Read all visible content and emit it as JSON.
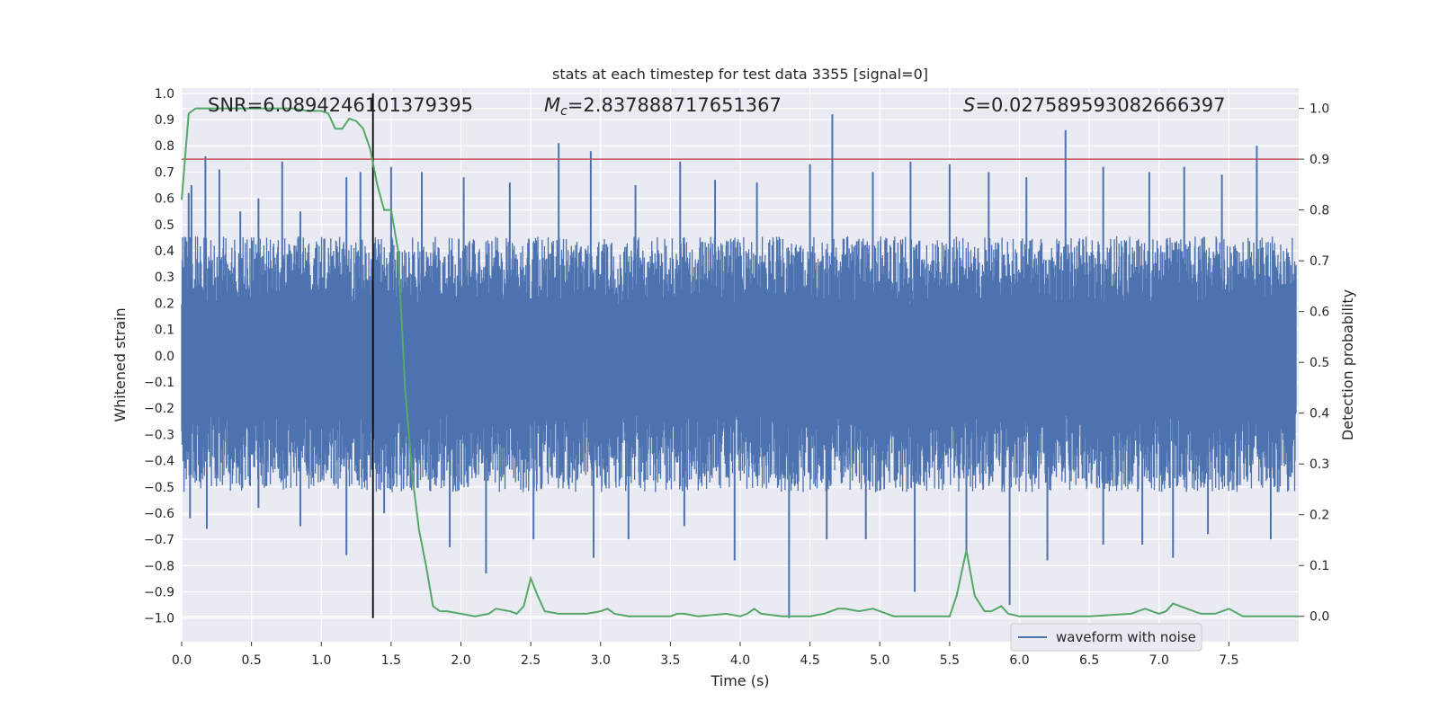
{
  "chart_data": {
    "type": "line",
    "title": "stats at each timestep for test data 3355 [signal=0]",
    "xlabel": "Time (s)",
    "ylabel_left": "Whitened strain",
    "ylabel_right": "Detection probability",
    "xlim": [
      0.0,
      8.0
    ],
    "ylim_left": [
      -1.09,
      1.02
    ],
    "ylim_right": [
      -0.05,
      1.04
    ],
    "x_ticks": [
      0.0,
      0.5,
      1.0,
      1.5,
      2.0,
      2.5,
      3.0,
      3.5,
      4.0,
      4.5,
      5.0,
      5.5,
      6.0,
      6.5,
      7.0,
      7.5
    ],
    "x_tick_labels": [
      "0.0",
      "0.5",
      "1.0",
      "1.5",
      "2.0",
      "2.5",
      "3.0",
      "3.5",
      "4.0",
      "4.5",
      "5.0",
      "5.5",
      "6.0",
      "6.5",
      "7.0",
      "7.5"
    ],
    "y_left_ticks": [
      1.0,
      0.9,
      0.8,
      0.7,
      0.6,
      0.5,
      0.4,
      0.3,
      0.2,
      0.1,
      0.0,
      -0.1,
      -0.2,
      -0.3,
      -0.4,
      -0.5,
      -0.6,
      -0.7,
      -0.8,
      -0.9,
      -1.0
    ],
    "y_left_tick_labels": [
      "1.0",
      "0.9",
      "0.8",
      "0.7",
      "0.6",
      "0.5",
      "0.4",
      "0.3",
      "0.2",
      "0.1",
      "0.0",
      "−0.1",
      "−0.2",
      "−0.3",
      "−0.4",
      "−0.5",
      "−0.6",
      "−0.7",
      "−0.8",
      "−0.9",
      "−1.0"
    ],
    "y_right_ticks": [
      1.0,
      0.9,
      0.8,
      0.7,
      0.6,
      0.5,
      0.4,
      0.3,
      0.2,
      0.1,
      0.0
    ],
    "y_right_tick_labels": [
      "1.0",
      "0.9",
      "0.8",
      "0.7",
      "0.6",
      "0.5",
      "0.4",
      "0.3",
      "0.2",
      "0.1",
      "0.0"
    ],
    "annotations": {
      "snr": "SNR=6.0894246101379395",
      "mc_symbol": "M",
      "mc_subscript": "c",
      "mc_value": "=2.837888717651367",
      "s_symbol": "S",
      "s_value": "=0.027589593082666397"
    },
    "legend": {
      "label": "waveform with noise",
      "placement": "lower-right"
    },
    "threshold": {
      "value": 0.9,
      "axis": "right",
      "color": "#c44e52"
    },
    "vertical_marker": {
      "x": 1.37,
      "color": "#000000"
    },
    "series": [
      {
        "name": "waveform with noise",
        "axis": "left",
        "color": "#4c72b0",
        "representation": "dense noise band, typical envelope about ±0.35 with spikes",
        "band_upper": 0.35,
        "band_lower": -0.4,
        "spikes": [
          {
            "x": 0.05,
            "y": 0.62
          },
          {
            "x": 0.07,
            "y": 0.65
          },
          {
            "x": 0.17,
            "y": 0.76
          },
          {
            "x": 0.27,
            "y": 0.71
          },
          {
            "x": 0.42,
            "y": 0.55
          },
          {
            "x": 0.55,
            "y": 0.6
          },
          {
            "x": 0.72,
            "y": 0.74
          },
          {
            "x": 0.85,
            "y": 0.55
          },
          {
            "x": 1.18,
            "y": 0.68
          },
          {
            "x": 1.28,
            "y": 0.7
          },
          {
            "x": 1.5,
            "y": 0.72
          },
          {
            "x": 1.72,
            "y": 0.7
          },
          {
            "x": 2.02,
            "y": 0.68
          },
          {
            "x": 2.35,
            "y": 0.66
          },
          {
            "x": 2.7,
            "y": 0.81
          },
          {
            "x": 2.93,
            "y": 0.78
          },
          {
            "x": 3.25,
            "y": 0.65
          },
          {
            "x": 3.57,
            "y": 0.74
          },
          {
            "x": 3.82,
            "y": 0.67
          },
          {
            "x": 4.12,
            "y": 0.66
          },
          {
            "x": 4.5,
            "y": 0.73
          },
          {
            "x": 4.66,
            "y": 0.92
          },
          {
            "x": 4.95,
            "y": 0.7
          },
          {
            "x": 5.22,
            "y": 0.74
          },
          {
            "x": 5.5,
            "y": 0.73
          },
          {
            "x": 5.78,
            "y": 0.7
          },
          {
            "x": 6.05,
            "y": 0.68
          },
          {
            "x": 6.33,
            "y": 0.86
          },
          {
            "x": 6.6,
            "y": 0.72
          },
          {
            "x": 6.93,
            "y": 0.7
          },
          {
            "x": 7.18,
            "y": 0.72
          },
          {
            "x": 7.45,
            "y": 0.69
          },
          {
            "x": 7.7,
            "y": 0.8
          },
          {
            "x": 0.06,
            "y": -0.62
          },
          {
            "x": 0.18,
            "y": -0.66
          },
          {
            "x": 0.55,
            "y": -0.58
          },
          {
            "x": 0.85,
            "y": -0.65
          },
          {
            "x": 1.18,
            "y": -0.76
          },
          {
            "x": 1.45,
            "y": -0.6
          },
          {
            "x": 1.92,
            "y": -0.73
          },
          {
            "x": 2.18,
            "y": -0.83
          },
          {
            "x": 2.52,
            "y": -0.7
          },
          {
            "x": 2.95,
            "y": -0.77
          },
          {
            "x": 3.2,
            "y": -0.7
          },
          {
            "x": 3.6,
            "y": -0.65
          },
          {
            "x": 3.96,
            "y": -0.78
          },
          {
            "x": 4.35,
            "y": -1.0
          },
          {
            "x": 4.62,
            "y": -0.7
          },
          {
            "x": 4.9,
            "y": -0.7
          },
          {
            "x": 5.25,
            "y": -0.9
          },
          {
            "x": 5.62,
            "y": -0.75
          },
          {
            "x": 5.93,
            "y": -0.95
          },
          {
            "x": 6.2,
            "y": -0.78
          },
          {
            "x": 6.6,
            "y": -0.72
          },
          {
            "x": 6.88,
            "y": -0.72
          },
          {
            "x": 7.1,
            "y": -0.77
          },
          {
            "x": 7.35,
            "y": -0.68
          },
          {
            "x": 7.8,
            "y": -0.7
          }
        ]
      },
      {
        "name": "detection probability",
        "axis": "right",
        "color": "#55a868",
        "x": [
          0.0,
          0.05,
          0.1,
          0.2,
          0.3,
          0.5,
          0.7,
          0.8,
          0.9,
          1.0,
          1.05,
          1.1,
          1.15,
          1.2,
          1.25,
          1.3,
          1.35,
          1.4,
          1.45,
          1.5,
          1.55,
          1.6,
          1.65,
          1.7,
          1.75,
          1.8,
          1.85,
          1.9,
          2.0,
          2.1,
          2.2,
          2.25,
          2.35,
          2.4,
          2.45,
          2.5,
          2.55,
          2.6,
          2.7,
          2.9,
          3.0,
          3.05,
          3.1,
          3.2,
          3.3,
          3.5,
          3.55,
          3.6,
          3.7,
          3.9,
          4.0,
          4.05,
          4.1,
          4.15,
          4.3,
          4.4,
          4.5,
          4.6,
          4.7,
          4.75,
          4.85,
          4.95,
          5.0,
          5.1,
          5.3,
          5.5,
          5.55,
          5.62,
          5.68,
          5.75,
          5.8,
          5.87,
          5.92,
          6.0,
          6.2,
          6.5,
          6.8,
          6.9,
          7.0,
          7.05,
          7.1,
          7.2,
          7.3,
          7.4,
          7.5,
          7.6,
          8.0
        ],
        "y": [
          0.82,
          0.99,
          1.0,
          1.0,
          1.0,
          1.0,
          1.0,
          1.0,
          0.995,
          0.995,
          0.99,
          0.96,
          0.96,
          0.98,
          0.975,
          0.96,
          0.92,
          0.85,
          0.8,
          0.8,
          0.72,
          0.45,
          0.28,
          0.17,
          0.1,
          0.02,
          0.01,
          0.01,
          0.005,
          0.0,
          0.005,
          0.015,
          0.01,
          0.005,
          0.02,
          0.075,
          0.04,
          0.01,
          0.005,
          0.005,
          0.01,
          0.015,
          0.005,
          0.0,
          0.0,
          0.0,
          0.005,
          0.005,
          0.0,
          0.005,
          0.0,
          0.005,
          0.015,
          0.005,
          0.0,
          0.0,
          0.0,
          0.005,
          0.015,
          0.015,
          0.01,
          0.015,
          0.01,
          0.0,
          0.0,
          0.0,
          0.04,
          0.13,
          0.04,
          0.01,
          0.01,
          0.02,
          0.005,
          0.0,
          0.0,
          0.0,
          0.005,
          0.015,
          0.005,
          0.01,
          0.025,
          0.015,
          0.005,
          0.005,
          0.015,
          0.0,
          0.0
        ]
      }
    ]
  }
}
